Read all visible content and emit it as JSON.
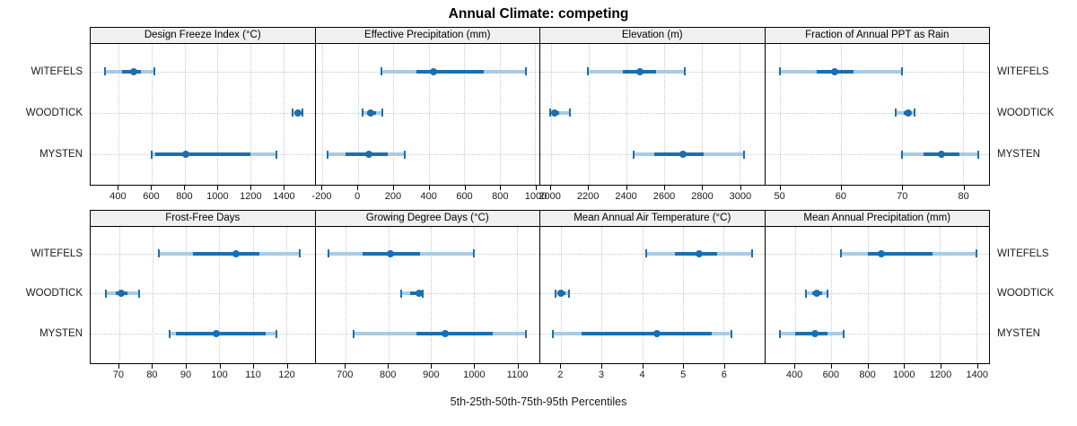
{
  "title": "Annual Climate: competing",
  "caption": "5th-25th-50th-75th-95th Percentiles",
  "sites": [
    "WITEFELS",
    "WOODTICK",
    "MYSTEN"
  ],
  "colors": {
    "bar_solid": "#1b6fae",
    "bar_light": "#a9cbe4",
    "strip_bg": "#f0f0f0",
    "grid": "#c9c9c9",
    "border": "#000000"
  },
  "chart_data": {
    "type": "percentile-errorbar-dotplot",
    "layout": "2 rows x 4 columns trellis",
    "grid": "dotted, on",
    "percentile_labels": [
      "p5",
      "p25",
      "p50",
      "p75",
      "p95"
    ],
    "row_categories_top_to_bottom": [
      "WITEFELS",
      "WOODTICK",
      "MYSTEN"
    ],
    "panels": [
      {
        "title": "Design Freeze Index (°C)",
        "xlim": [
          230,
          1590
        ],
        "ticks": [
          400,
          600,
          800,
          1000,
          1200,
          1400
        ],
        "series": [
          {
            "name": "WITEFELS",
            "values": [
              315,
              420,
              490,
              535,
              615
            ]
          },
          {
            "name": "WOODTICK",
            "values": [
              1455,
              1472,
              1487,
              1500,
              1519
            ]
          },
          {
            "name": "MYSTEN",
            "values": [
              600,
              625,
              808,
              1200,
              1360
            ]
          }
        ]
      },
      {
        "title": "Effective Precipitation (mm)",
        "xlim": [
          -240,
          1025
        ],
        "ticks": [
          -200,
          0,
          200,
          400,
          600,
          800,
          1000
        ],
        "series": [
          {
            "name": "WITEFELS",
            "values": [
              135,
              330,
              425,
              710,
              950
            ]
          },
          {
            "name": "WOODTICK",
            "values": [
              25,
              50,
              73,
              100,
              140
            ]
          },
          {
            "name": "MYSTEN",
            "values": [
              -173,
              -68,
              60,
              170,
              263
            ]
          }
        ]
      },
      {
        "title": "Elevation (m)",
        "xlim": [
          1945,
          3130
        ],
        "ticks": [
          2000,
          2200,
          2400,
          2600,
          2800,
          3000
        ],
        "series": [
          {
            "name": "WITEFELS",
            "values": [
              2195,
              2380,
              2470,
              2560,
              2710
            ]
          },
          {
            "name": "WOODTICK",
            "values": [
              1995,
              2005,
              2020,
              2045,
              2100
            ]
          },
          {
            "name": "MYSTEN",
            "values": [
              2440,
              2550,
              2700,
              2810,
              3025
            ]
          }
        ]
      },
      {
        "title": "Fraction of Annual PPT as Rain",
        "xlim": [
          47.5,
          84.3
        ],
        "ticks": [
          50,
          60,
          70,
          80
        ],
        "series": [
          {
            "name": "WITEFELS",
            "values": [
              50,
              56,
              59,
              62,
              70
            ]
          },
          {
            "name": "WOODTICK",
            "values": [
              69,
              70.3,
              71,
              71.5,
              72
            ]
          },
          {
            "name": "MYSTEN",
            "values": [
              70,
              73.5,
              76.5,
              79.5,
              82.5
            ]
          }
        ]
      },
      {
        "title": "Frost-Free Days",
        "xlim": [
          61.5,
          128.5
        ],
        "ticks": [
          70,
          80,
          90,
          100,
          110,
          120
        ],
        "series": [
          {
            "name": "WITEFELS",
            "values": [
              82,
              92,
              105,
              112,
              124
            ]
          },
          {
            "name": "WOODTICK",
            "values": [
              66,
              69,
              70.5,
              72.5,
              76
            ]
          },
          {
            "name": "MYSTEN",
            "values": [
              85,
              87,
              99,
              114,
              117
            ]
          }
        ]
      },
      {
        "title": "Growing Degree Days (°C)",
        "xlim": [
          630,
          1153
        ],
        "ticks": [
          700,
          800,
          900,
          1000,
          1100
        ],
        "series": [
          {
            "name": "WITEFELS",
            "values": [
              660,
              740,
              805,
              875,
              1000
            ]
          },
          {
            "name": "WOODTICK",
            "values": [
              830,
              851,
              872,
              878,
              881
            ]
          },
          {
            "name": "MYSTEN",
            "values": [
              720,
              865,
              932,
              1045,
              1122
            ]
          }
        ]
      },
      {
        "title": "Mean Annual Air Temperature (°C)",
        "xlim": [
          1.49,
          7.0
        ],
        "ticks": [
          2,
          3,
          4,
          5,
          6
        ],
        "series": [
          {
            "name": "WITEFELS",
            "values": [
              4.1,
              4.8,
              5.4,
              5.85,
              6.7
            ]
          },
          {
            "name": "WOODTICK",
            "values": [
              1.87,
              1.93,
              2.0,
              2.1,
              2.2
            ]
          },
          {
            "name": "MYSTEN",
            "values": [
              1.8,
              2.5,
              4.35,
              5.7,
              6.2
            ]
          }
        ]
      },
      {
        "title": "Mean Annual Precipitation (mm)",
        "xlim": [
          235,
          1470
        ],
        "ticks": [
          400,
          600,
          800,
          1000,
          1200,
          1400
        ],
        "series": [
          {
            "name": "WITEFELS",
            "values": [
              655,
              800,
              875,
              1160,
              1400
            ]
          },
          {
            "name": "WOODTICK",
            "values": [
              460,
              495,
              522,
              550,
              580
            ]
          },
          {
            "name": "MYSTEN",
            "values": [
              315,
              400,
              508,
              580,
              670
            ]
          }
        ]
      }
    ]
  }
}
